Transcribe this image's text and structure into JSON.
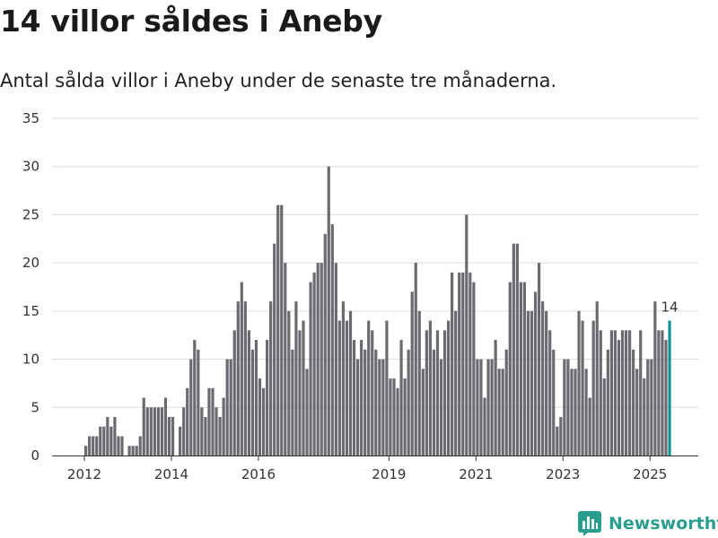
{
  "header": {
    "title": "14 villor såldes i Aneby",
    "subtitle": "Antal sålda villor i Aneby under de senaste tre månaderna."
  },
  "brand": {
    "name": "Newsworthy",
    "icon": "bar-chart-logo-icon",
    "color": "#2a9d8f"
  },
  "colors": {
    "bar": "#6b6a70",
    "highlight": "#15928f"
  },
  "chart_data": {
    "type": "bar",
    "title": "14 villor såldes i Aneby",
    "subtitle": "Antal sålda villor i Aneby under de senaste tre månaderna.",
    "xlabel": "",
    "ylabel": "",
    "ylim": [
      0,
      35
    ],
    "yticks": [
      0,
      5,
      10,
      15,
      20,
      25,
      30,
      35
    ],
    "xticks": [
      "2012",
      "2014",
      "2016",
      "2019",
      "2021",
      "2023",
      "2025"
    ],
    "grid": true,
    "start": "2012-01",
    "frequency": "monthly",
    "values": [
      1,
      2,
      2,
      2,
      3,
      3,
      4,
      3,
      4,
      2,
      2,
      0,
      1,
      1,
      1,
      2,
      6,
      5,
      5,
      5,
      5,
      5,
      6,
      4,
      4,
      0,
      3,
      5,
      7,
      10,
      12,
      11,
      5,
      4,
      7,
      7,
      5,
      4,
      6,
      10,
      10,
      13,
      16,
      18,
      16,
      13,
      11,
      12,
      8,
      7,
      12,
      16,
      22,
      26,
      26,
      20,
      15,
      11,
      16,
      13,
      14,
      9,
      18,
      19,
      20,
      20,
      23,
      30,
      24,
      20,
      14,
      16,
      14,
      15,
      12,
      10,
      12,
      11,
      14,
      13,
      11,
      10,
      10,
      14,
      8,
      8,
      7,
      12,
      8,
      11,
      17,
      20,
      15,
      9,
      13,
      14,
      11,
      13,
      10,
      13,
      14,
      19,
      15,
      19,
      19,
      25,
      19,
      18,
      10,
      10,
      6,
      10,
      10,
      12,
      9,
      9,
      11,
      18,
      22,
      22,
      18,
      18,
      15,
      15,
      17,
      20,
      16,
      15,
      13,
      11,
      3,
      4,
      10,
      10,
      9,
      9,
      15,
      14,
      9,
      6,
      14,
      16,
      13,
      8,
      11,
      13,
      13,
      12,
      13,
      13,
      13,
      11,
      9,
      13,
      8,
      10,
      10,
      16,
      13,
      13,
      12,
      14
    ],
    "highlight_label": "14",
    "series": [
      {
        "values": "monthly counts"
      }
    ]
  }
}
